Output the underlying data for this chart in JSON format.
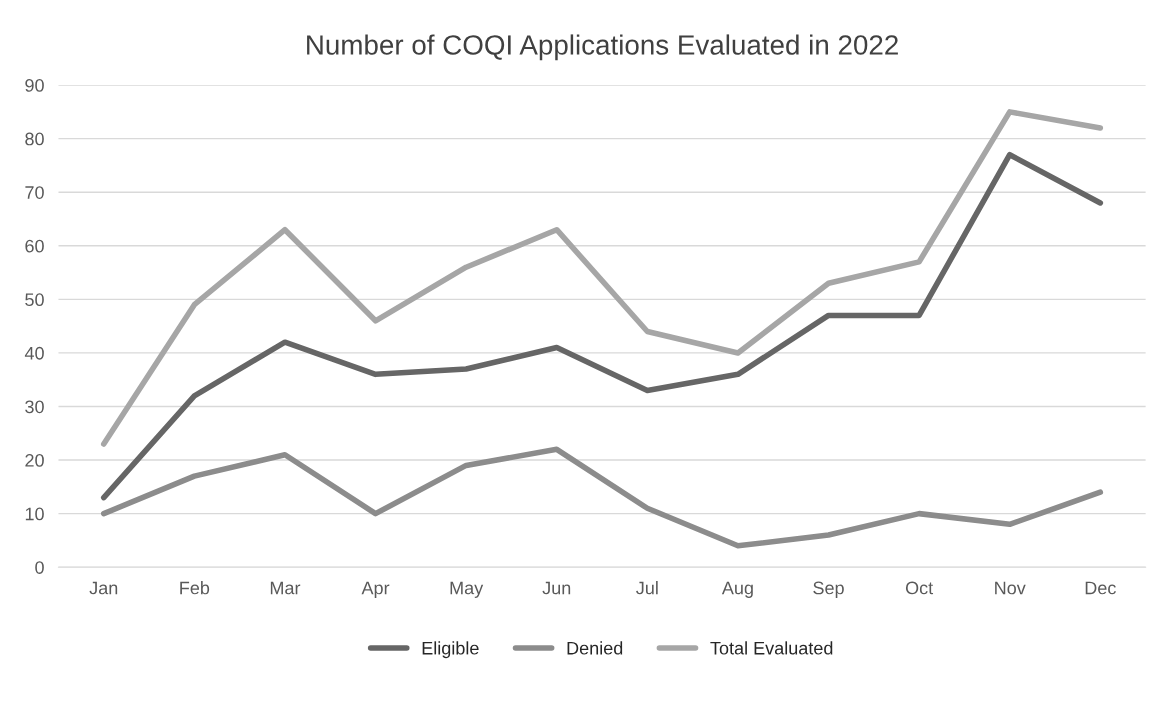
{
  "chart_data": {
    "type": "line",
    "title": "Number of COQI Applications Evaluated in 2022",
    "categories": [
      "Jan",
      "Feb",
      "Mar",
      "Apr",
      "May",
      "Jun",
      "Jul",
      "Aug",
      "Sep",
      "Oct",
      "Nov",
      "Dec"
    ],
    "series": [
      {
        "name": "Eligible",
        "color": "#666666",
        "values": [
          13,
          32,
          42,
          36,
          37,
          41,
          33,
          36,
          47,
          47,
          77,
          68
        ]
      },
      {
        "name": "Denied",
        "color": "#8c8c8c",
        "values": [
          10,
          17,
          21,
          10,
          19,
          22,
          11,
          4,
          6,
          10,
          8,
          14
        ]
      },
      {
        "name": "Total Evaluated",
        "color": "#a6a6a6",
        "values": [
          23,
          49,
          63,
          46,
          56,
          63,
          44,
          40,
          53,
          57,
          85,
          82
        ]
      }
    ],
    "ylim": [
      0,
      90
    ],
    "yticks": [
      0,
      10,
      20,
      30,
      40,
      50,
      60,
      70,
      80,
      90
    ],
    "grid": "y",
    "legend": "bottom",
    "marker": "none",
    "line_style": "solid"
  }
}
